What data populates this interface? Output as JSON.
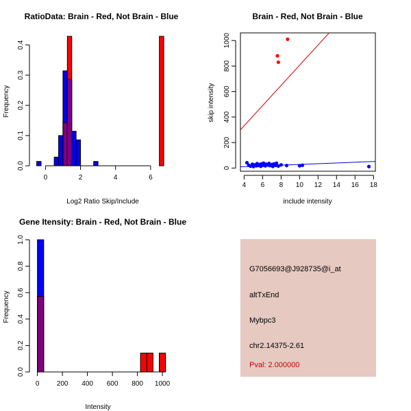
{
  "colors": {
    "brain": "#ff0000",
    "not_brain": "#0000ff",
    "overlap": "#800080",
    "brain_line": "#cc0000",
    "not_brain_line": "#0000cc",
    "info_bg": "#e6c9c1",
    "pval": "#cc0000"
  },
  "chart_data": [
    {
      "id": "ratio",
      "type": "bar",
      "title": "RatioData: Brain - Red, Not Brain - Blue",
      "xlabel": "Log2 Ratio Skip/Include",
      "ylabel": "Frequency",
      "xlim": [
        -0.6,
        7.1
      ],
      "ylim": [
        0,
        0.44
      ],
      "xticks": [
        0,
        2,
        4,
        6
      ],
      "yticks": [
        0,
        0.1,
        0.2,
        0.3,
        0.4
      ],
      "ytick_labels": [
        "0.0",
        "0.1",
        "0.2",
        "0.3",
        "0.4"
      ],
      "series": [
        {
          "name": "Not Brain",
          "color_key": "not_brain",
          "bins": [
            {
              "x0": -0.5,
              "x1": -0.25,
              "value": 0.0143
            },
            {
              "x0": 0.5,
              "x1": 0.75,
              "value": 0.0286
            },
            {
              "x0": 0.75,
              "x1": 1.0,
              "value": 0.1
            },
            {
              "x0": 1.0,
              "x1": 1.25,
              "value": 0.3143
            },
            {
              "x0": 1.25,
              "x1": 1.5,
              "value": 0.2857
            },
            {
              "x0": 1.5,
              "x1": 1.75,
              "value": 0.1143
            },
            {
              "x0": 1.75,
              "x1": 2.0,
              "value": 0.0857
            },
            {
              "x0": 2.75,
              "x1": 3.0,
              "value": 0.0143
            }
          ]
        },
        {
          "name": "Brain",
          "color_key": "brain",
          "bins": [
            {
              "x0": 1.0,
              "x1": 1.25,
              "value": 0.1429
            },
            {
              "x0": 1.25,
              "x1": 1.5,
              "value": 0.4286
            },
            {
              "x0": 6.5,
              "x1": 6.75,
              "value": 0.4286
            }
          ]
        }
      ]
    },
    {
      "id": "scatter",
      "type": "scatter",
      "title": "Brain - Red, Not Brain - Blue",
      "xlabel": "include intensity",
      "ylabel": "skip intensity",
      "xlim": [
        3.6,
        18.2
      ],
      "ylim": [
        -25,
        1060
      ],
      "xticks": [
        4,
        6,
        8,
        10,
        12,
        14,
        16,
        18
      ],
      "yticks": [
        0,
        200,
        400,
        600,
        800,
        1000
      ],
      "series": [
        {
          "name": "Brain",
          "color_key": "brain",
          "points": [
            [
              7.6,
              880
            ],
            [
              7.7,
              830
            ],
            [
              8.7,
              1010
            ]
          ],
          "fit_line": {
            "x": [
              3.6,
              13.2
            ],
            "y": [
              300,
              1060
            ],
            "color_key": "brain_line"
          }
        },
        {
          "name": "Not Brain",
          "color_key": "not_brain",
          "points": [
            [
              4.3,
              42
            ],
            [
              4.5,
              22
            ],
            [
              4.7,
              15
            ],
            [
              4.9,
              30
            ],
            [
              5.0,
              12
            ],
            [
              5.1,
              25
            ],
            [
              5.3,
              18
            ],
            [
              5.4,
              35
            ],
            [
              5.5,
              20
            ],
            [
              5.7,
              28
            ],
            [
              5.8,
              14
            ],
            [
              5.9,
              33
            ],
            [
              6.0,
              22
            ],
            [
              6.1,
              38
            ],
            [
              6.3,
              17
            ],
            [
              6.4,
              30
            ],
            [
              6.6,
              24
            ],
            [
              6.7,
              36
            ],
            [
              6.8,
              19
            ],
            [
              7.0,
              27
            ],
            [
              7.1,
              13
            ],
            [
              7.2,
              32
            ],
            [
              7.4,
              21
            ],
            [
              7.5,
              38
            ],
            [
              7.7,
              16
            ],
            [
              8.0,
              25
            ],
            [
              8.6,
              20
            ],
            [
              10.0,
              18
            ],
            [
              10.3,
              22
            ],
            [
              17.5,
              12
            ]
          ],
          "fit_line": {
            "x": [
              3.6,
              18.2
            ],
            "y": [
              10,
              52
            ],
            "color_key": "not_brain_line"
          }
        }
      ]
    },
    {
      "id": "intensity",
      "type": "bar",
      "title": "Gene Itensity: Brain - Red, Not Brain - Blue",
      "xlabel": "Intensity",
      "ylabel": "Frequency",
      "xlim": [
        -20,
        1060
      ],
      "ylim": [
        0,
        1.0
      ],
      "xticks": [
        0,
        200,
        400,
        600,
        800,
        1000
      ],
      "yticks": [
        0,
        0.2,
        0.4,
        0.6,
        0.8,
        1.0
      ],
      "ytick_labels": [
        "0.0",
        "0.2",
        "0.4",
        "0.6",
        "0.8",
        "1.0"
      ],
      "series": [
        {
          "name": "Not Brain",
          "color_key": "not_brain",
          "bins": [
            {
              "x0": 0,
              "x1": 50,
              "value": 1.0
            }
          ]
        },
        {
          "name": "Brain",
          "color_key": "brain",
          "bins": [
            {
              "x0": 0,
              "x1": 50,
              "value": 0.5714
            },
            {
              "x0": 825,
              "x1": 875,
              "value": 0.1429
            },
            {
              "x0": 875,
              "x1": 925,
              "value": 0.1429
            },
            {
              "x0": 975,
              "x1": 1025,
              "value": 0.1429
            }
          ]
        }
      ]
    }
  ],
  "info": {
    "probe_id": "G7056693@J928735@i_at",
    "event_type": "altTxEnd",
    "gene": "Mybpc3",
    "location": "chr2.14375-2.61",
    "pval": "Pval: 2.000000"
  }
}
